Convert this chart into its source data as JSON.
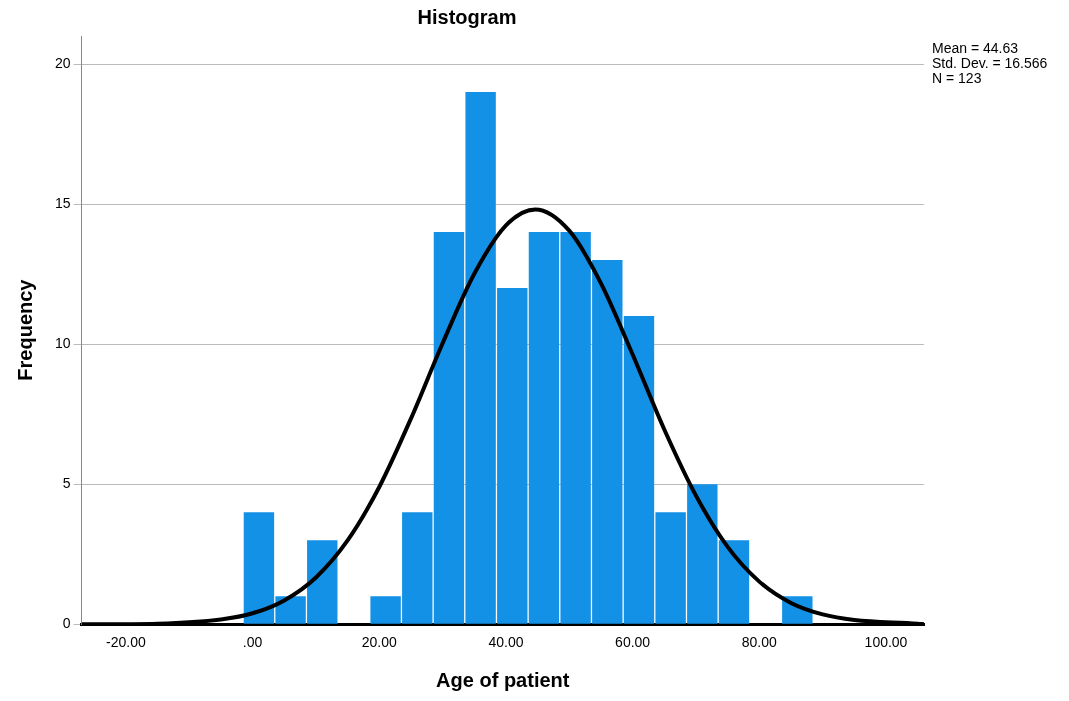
{
  "chart_data": {
    "type": "histogram",
    "title": "Histogram",
    "xlabel": "Age of patient",
    "ylabel": "Frequency",
    "bins": [
      -1.5,
      3.5,
      8.5,
      13.5,
      18.5,
      23.5,
      28.5,
      33.5,
      38.5,
      43.5,
      48.5,
      53.5,
      58.5,
      63.5,
      68.5,
      73.5,
      78.5,
      83.5,
      88.5
    ],
    "values": [
      4,
      1,
      3,
      0,
      1,
      4,
      14,
      19,
      12,
      14,
      14,
      13,
      11,
      4,
      5,
      3,
      0,
      1
    ],
    "color": "#1391e6",
    "series": [
      {
        "type": "line",
        "color": "#000000",
        "x": [
          -27,
          -25,
          -15,
          -5,
          0,
          5,
          10,
          15,
          20,
          25,
          30,
          35,
          40,
          44.63,
          50,
          55,
          60,
          65,
          70,
          75,
          80,
          85,
          90,
          95,
          105,
          106
        ],
        "values": [
          0.0,
          0.0,
          0.02,
          0.17,
          0.39,
          0.85,
          1.67,
          2.99,
          4.9,
          7.34,
          10.03,
          12.51,
          14.24,
          14.81,
          14.05,
          12.17,
          9.63,
          6.95,
          4.59,
          2.76,
          1.52,
          0.76,
          0.35,
          0.15,
          0.02,
          0.0
        ]
      }
    ],
    "xlim": [
      -27,
      106
    ],
    "xticks": [
      {
        "value": -20,
        "label": "-20.00"
      },
      {
        "value": 0,
        "label": ".00"
      },
      {
        "value": 20,
        "label": "20.00"
      },
      {
        "value": 40,
        "label": "40.00"
      },
      {
        "value": 60,
        "label": "60.00"
      },
      {
        "value": 80,
        "label": "80.00"
      },
      {
        "value": 100,
        "label": "100.00"
      }
    ],
    "ylim": [
      0,
      21
    ],
    "yticks": [
      0,
      5,
      10,
      15,
      20
    ],
    "grid": "y",
    "annotations": [
      "Mean = 44.63",
      "Std. Dev. = 16.566",
      "N = 123"
    ]
  }
}
